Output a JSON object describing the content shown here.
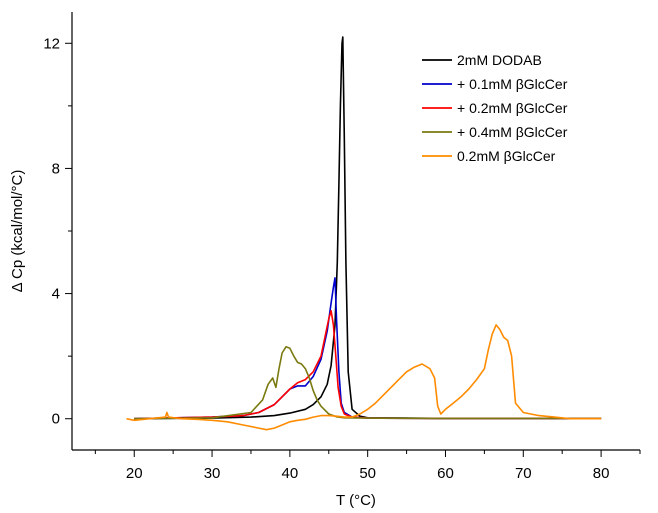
{
  "chart_data": {
    "type": "line",
    "xlabel": "T (°C)",
    "ylabel": "Δ Cp (kcal/mol/°C)",
    "xlim": [
      12,
      85
    ],
    "ylim": [
      -1,
      13
    ],
    "x_ticks": [
      "20",
      "30",
      "40",
      "50",
      "60",
      "70",
      "80"
    ],
    "y_ticks": [
      "0",
      "4",
      "8",
      "12"
    ],
    "legend_position": "top-right",
    "series": [
      {
        "name": "2mM DODAB",
        "color": "#000000",
        "x": [
          20,
          30,
          35,
          38,
          40,
          42,
          43,
          44,
          44.8,
          45.3,
          45.8,
          46.1,
          46.3,
          46.5,
          46.7,
          46.8,
          47.0,
          47.2,
          47.5,
          48,
          49,
          50,
          55,
          60,
          70,
          80
        ],
        "y": [
          0,
          0.02,
          0.05,
          0.1,
          0.18,
          0.3,
          0.45,
          0.7,
          1.1,
          1.7,
          3.0,
          5.0,
          7.5,
          10.0,
          12.0,
          12.2,
          9.0,
          5.0,
          1.5,
          0.3,
          0.08,
          0.03,
          0.02,
          0.01,
          0.01,
          0.01
        ]
      },
      {
        "name": "+ 0.1mM βGlcCer",
        "color": "#0000cc",
        "x": [
          20,
          30,
          34,
          36,
          38,
          39,
          40,
          41,
          42,
          43,
          44,
          44.8,
          45.3,
          45.6,
          45.8,
          46.0,
          46.3,
          46.6,
          47,
          48,
          50,
          60,
          70,
          80
        ],
        "y": [
          0,
          0.05,
          0.1,
          0.2,
          0.45,
          0.7,
          0.95,
          1.05,
          1.05,
          1.35,
          1.9,
          2.8,
          3.7,
          4.2,
          4.5,
          3.2,
          1.5,
          0.5,
          0.2,
          0.05,
          0.02,
          0.01,
          0.01,
          0.01
        ]
      },
      {
        "name": "+ 0.2mM βGlcCer",
        "color": "#ff0000",
        "x": [
          20,
          30,
          34,
          36,
          38,
          39,
          40,
          41,
          42,
          43,
          44,
          44.5,
          45.0,
          45.3,
          45.6,
          45.9,
          46.2,
          46.6,
          47,
          48,
          50,
          60,
          70,
          80
        ],
        "y": [
          0,
          0.05,
          0.1,
          0.2,
          0.45,
          0.7,
          0.95,
          1.15,
          1.25,
          1.5,
          2.0,
          2.6,
          3.2,
          3.45,
          3.0,
          2.0,
          1.0,
          0.4,
          0.15,
          0.05,
          0.02,
          0.01,
          0.01,
          0.01
        ]
      },
      {
        "name": "+ 0.4mM βGlcCer",
        "color": "#7a7a10",
        "x": [
          20,
          30,
          35,
          36.5,
          37.2,
          37.8,
          38.2,
          38.6,
          39.0,
          39.5,
          40.0,
          40.5,
          41.0,
          41.5,
          42.0,
          42.5,
          43.0,
          43.5,
          44.0,
          45.0,
          46.0,
          47,
          50,
          60,
          70,
          80
        ],
        "y": [
          0,
          0.03,
          0.2,
          0.6,
          1.1,
          1.3,
          1.0,
          1.6,
          2.1,
          2.3,
          2.25,
          2.0,
          1.8,
          1.75,
          1.6,
          1.3,
          0.9,
          0.6,
          0.4,
          0.15,
          0.06,
          0.03,
          0.02,
          0.01,
          0.01,
          0.01
        ]
      },
      {
        "name": "0.2mM βGlcCer",
        "color": "#ff8c00",
        "x": [
          19,
          20,
          22,
          24,
          24.2,
          24.4,
          26,
          28,
          30,
          32,
          34,
          36,
          37,
          38,
          39,
          40,
          41,
          42,
          43,
          44,
          45,
          46,
          47,
          48,
          49,
          50,
          51,
          52,
          53,
          54,
          55,
          56,
          57,
          58,
          58.6,
          59.0,
          59.4,
          60,
          61,
          62,
          63,
          64,
          65,
          65.5,
          66,
          66.5,
          67,
          67.5,
          68,
          68.5,
          69,
          70,
          72,
          74,
          76,
          78,
          80
        ],
        "y": [
          0,
          -0.05,
          0,
          0.05,
          0.2,
          0.05,
          0,
          -0.02,
          -0.05,
          -0.1,
          -0.2,
          -0.3,
          -0.35,
          -0.3,
          -0.2,
          -0.1,
          -0.05,
          -0.02,
          0.05,
          0.1,
          0.1,
          0.08,
          0.05,
          0.05,
          0.15,
          0.3,
          0.5,
          0.75,
          1.0,
          1.25,
          1.5,
          1.65,
          1.75,
          1.6,
          1.3,
          0.4,
          0.15,
          0.3,
          0.5,
          0.7,
          0.95,
          1.25,
          1.6,
          2.2,
          2.7,
          3.0,
          2.85,
          2.6,
          2.5,
          2.0,
          0.5,
          0.2,
          0.1,
          0.05,
          0.0,
          0.0,
          0.0
        ]
      }
    ]
  }
}
